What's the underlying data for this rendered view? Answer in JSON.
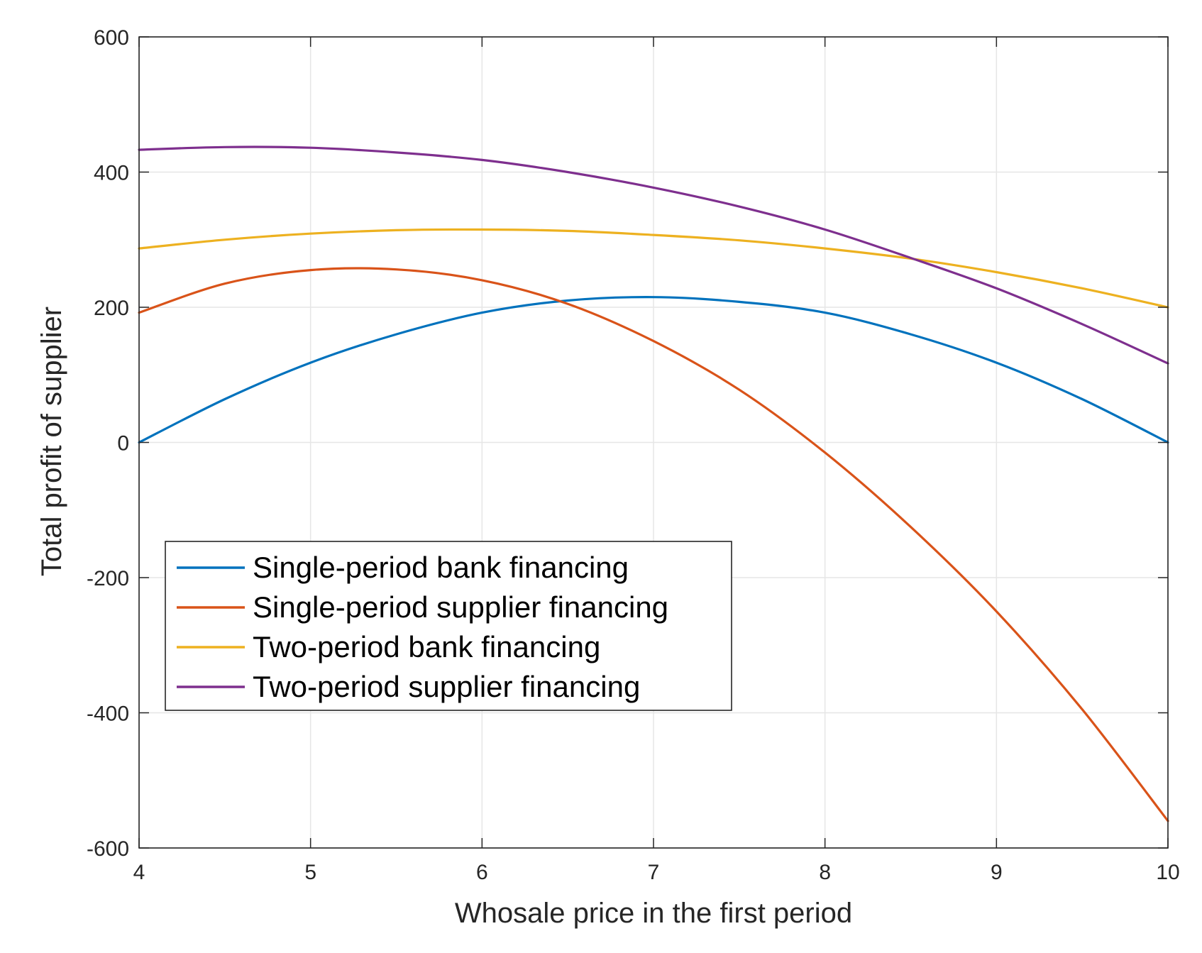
{
  "chart_data": {
    "type": "line",
    "xlabel": "Whosale price in the first period",
    "ylabel": "Total profit of supplier",
    "xlim": [
      4,
      10
    ],
    "ylim": [
      -600,
      600
    ],
    "xticks": [
      4,
      5,
      6,
      7,
      8,
      9,
      10
    ],
    "yticks": [
      -600,
      -400,
      -200,
      0,
      200,
      400,
      600
    ],
    "grid": true,
    "legend_position": "lower-left",
    "series": [
      {
        "name": "Single-period bank financing",
        "color": "#0072BD",
        "x": [
          4,
          4.5,
          5,
          5.5,
          6,
          6.5,
          7,
          7.5,
          8,
          8.5,
          9,
          9.5,
          10
        ],
        "y": [
          0,
          64,
          118,
          160,
          192,
          210,
          215,
          208,
          192,
          160,
          118,
          64,
          0
        ]
      },
      {
        "name": "Single-period supplier financing",
        "color": "#D95319",
        "x": [
          4,
          4.5,
          5,
          5.5,
          6,
          6.5,
          7,
          7.5,
          8,
          8.5,
          9,
          9.5,
          10
        ],
        "y": [
          192,
          235,
          255,
          256,
          240,
          205,
          150,
          78,
          -15,
          -125,
          -250,
          -395,
          -560
        ]
      },
      {
        "name": "Two-period bank financing",
        "color": "#EDB120",
        "x": [
          4,
          4.5,
          5,
          5.5,
          6,
          6.5,
          7,
          7.5,
          8,
          8.5,
          9,
          9.5,
          10
        ],
        "y": [
          287,
          300,
          309,
          314,
          315,
          313,
          307,
          299,
          287,
          272,
          252,
          228,
          200
        ]
      },
      {
        "name": "Two-period supplier financing",
        "color": "#7E2F8E",
        "x": [
          4,
          4.5,
          5,
          5.5,
          6,
          6.5,
          7,
          7.5,
          8,
          8.5,
          9,
          9.5,
          10
        ],
        "y": [
          433,
          437,
          436,
          429,
          418,
          400,
          377,
          349,
          315,
          273,
          228,
          175,
          117
        ]
      }
    ]
  }
}
